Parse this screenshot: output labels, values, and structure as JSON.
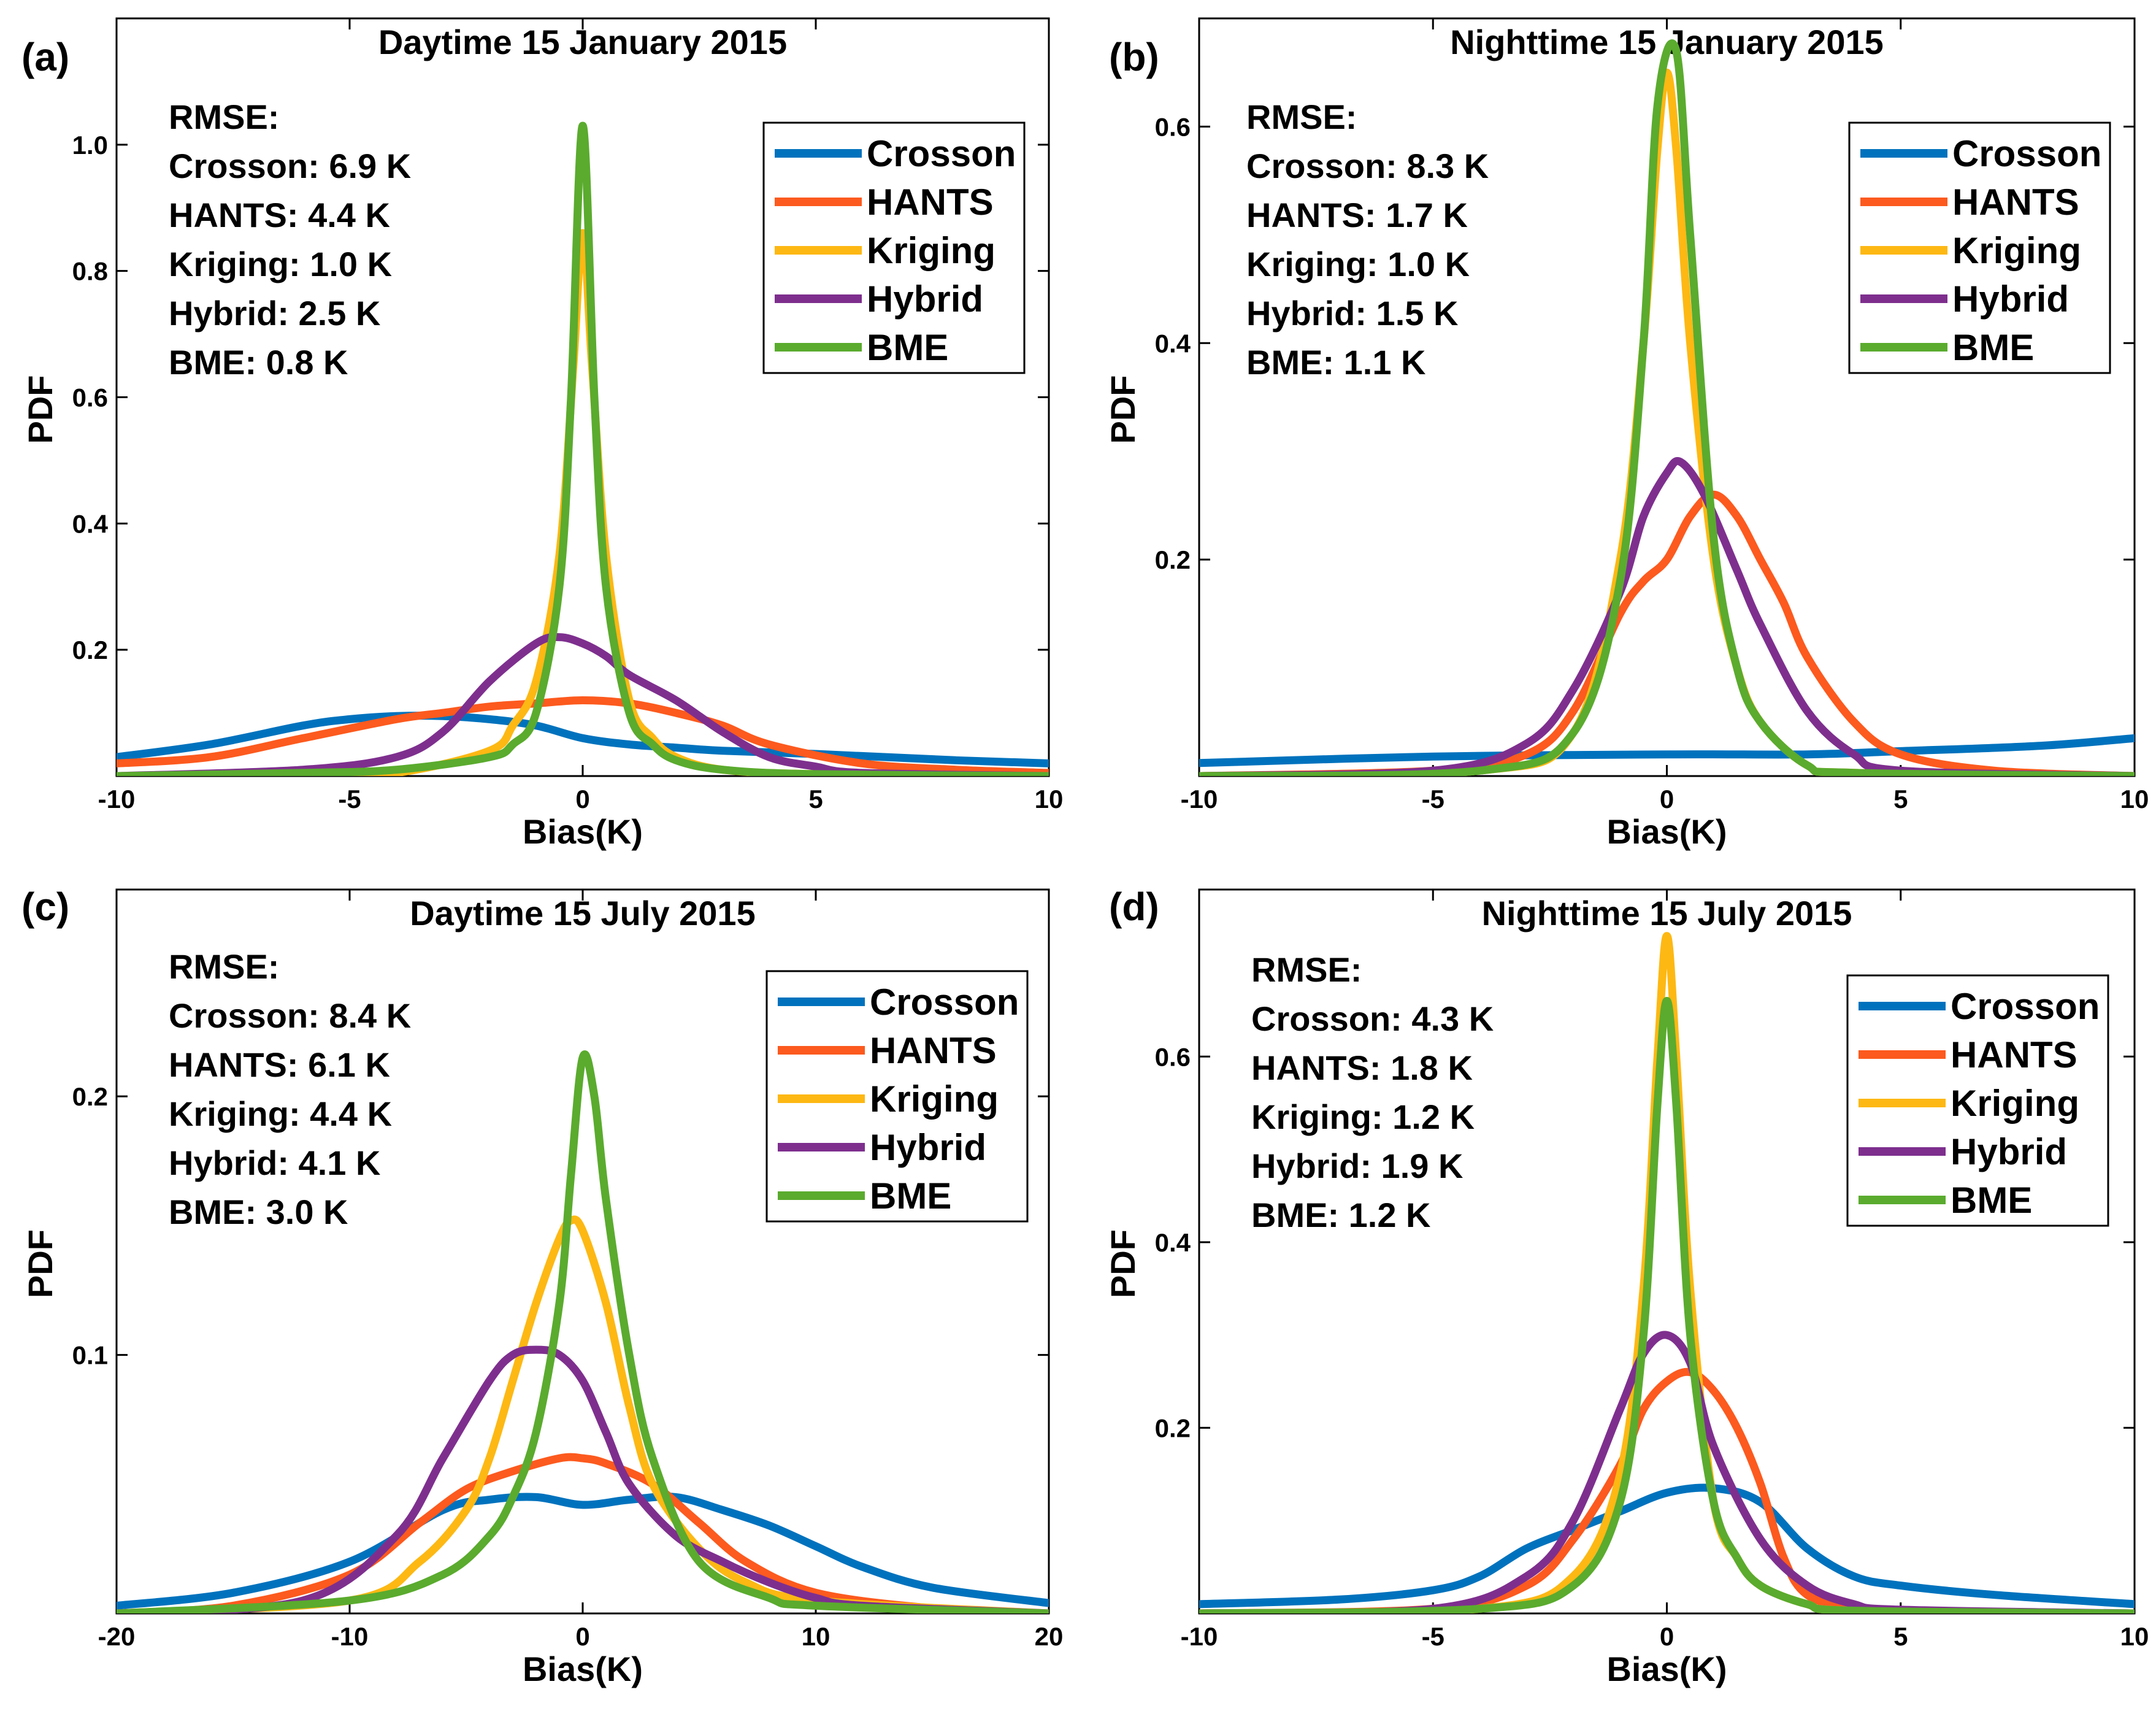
{
  "colors": {
    "Crosson": "#0072bd",
    "HANTS": "#fc5a1e",
    "Kriging": "#fdb813",
    "Hybrid": "#7e2f8e",
    "BME": "#5aab2e"
  },
  "chart_data": [
    {
      "type": "line",
      "panel_label": "(a)",
      "title": "Daytime 15 January 2015",
      "xlabel": "Bias(K)",
      "ylabel": "PDF",
      "xlim": [
        -10,
        10
      ],
      "ylim": [
        0,
        1.2
      ],
      "xticks": [
        -10,
        -5,
        0,
        5,
        10
      ],
      "xtick_labels": [
        "-10",
        "-5",
        "0",
        "5",
        "10"
      ],
      "yticks": [
        0.2,
        0.4,
        0.6,
        0.8,
        1.0
      ],
      "ytick_labels": [
        "0.2",
        "0.4",
        "0.6",
        "0.8",
        "1.0"
      ],
      "grid": false,
      "legend_position": "top-right",
      "rmse": [
        "RMSE:",
        "Crosson: 6.9 K",
        "HANTS: 4.4 K",
        "Kriging: 1.0 K",
        "Hybrid: 2.5 K",
        "BME: 0.8 K"
      ],
      "series": [
        {
          "name": "Crosson",
          "x": [
            -10,
            -8,
            -6,
            -5,
            -4,
            -3,
            -2,
            -1,
            0,
            1,
            2,
            3,
            5,
            8,
            10
          ],
          "y": [
            0.03,
            0.05,
            0.08,
            0.09,
            0.095,
            0.095,
            0.09,
            0.08,
            0.06,
            0.05,
            0.045,
            0.04,
            0.035,
            0.025,
            0.02
          ]
        },
        {
          "name": "HANTS",
          "x": [
            -10,
            -8,
            -6,
            -4,
            -3,
            -2,
            -1,
            0,
            1,
            2,
            3,
            4,
            6,
            8,
            10
          ],
          "y": [
            0.02,
            0.03,
            0.06,
            0.09,
            0.1,
            0.11,
            0.115,
            0.12,
            0.115,
            0.1,
            0.08,
            0.05,
            0.02,
            0.01,
            0.005
          ]
        },
        {
          "name": "Kriging",
          "x": [
            -10,
            -6,
            -4,
            -2,
            -1.5,
            -1,
            -0.5,
            -0.2,
            0,
            0.2,
            0.5,
            1,
            1.5,
            2,
            3,
            5,
            10
          ],
          "y": [
            0.0,
            0.0,
            0.005,
            0.04,
            0.08,
            0.15,
            0.35,
            0.65,
            0.86,
            0.65,
            0.35,
            0.12,
            0.06,
            0.03,
            0.01,
            0.003,
            0.0
          ]
        },
        {
          "name": "Hybrid",
          "x": [
            -10,
            -6,
            -4,
            -3,
            -2,
            -1,
            -0.5,
            0,
            0.5,
            1,
            2,
            3,
            4,
            5,
            6,
            10
          ],
          "y": [
            0.0,
            0.01,
            0.03,
            0.07,
            0.15,
            0.21,
            0.22,
            0.21,
            0.19,
            0.16,
            0.12,
            0.07,
            0.03,
            0.015,
            0.005,
            0.0
          ]
        },
        {
          "name": "BME",
          "x": [
            -10,
            -6,
            -4,
            -2,
            -1.5,
            -1,
            -0.5,
            -0.25,
            0,
            0.25,
            0.5,
            1,
            1.5,
            2,
            3,
            5,
            10
          ],
          "y": [
            0.0,
            0.005,
            0.01,
            0.03,
            0.05,
            0.1,
            0.3,
            0.6,
            1.03,
            0.6,
            0.3,
            0.1,
            0.05,
            0.025,
            0.01,
            0.003,
            0.0
          ]
        }
      ]
    },
    {
      "type": "line",
      "panel_label": "(b)",
      "title": "Nighttime 15 January 2015",
      "xlabel": "Bias(K)",
      "ylabel": "PDF",
      "xlim": [
        -10,
        10
      ],
      "ylim": [
        0,
        0.7
      ],
      "xticks": [
        -10,
        -5,
        0,
        5,
        10
      ],
      "xtick_labels": [
        "-10",
        "-5",
        "0",
        "5",
        "10"
      ],
      "yticks": [
        0.2,
        0.4,
        0.6
      ],
      "ytick_labels": [
        "0.2",
        "0.4",
        "0.6"
      ],
      "grid": false,
      "legend_position": "top-right",
      "rmse": [
        "RMSE:",
        "Crosson: 8.3 K",
        "HANTS: 1.7 K",
        "Kriging: 1.0 K",
        "Hybrid: 1.5 K",
        "BME: 1.1 K"
      ],
      "series": [
        {
          "name": "Crosson",
          "x": [
            -10,
            -5,
            0,
            3,
            5,
            8,
            10
          ],
          "y": [
            0.012,
            0.018,
            0.02,
            0.02,
            0.023,
            0.028,
            0.035
          ]
        },
        {
          "name": "HANTS",
          "x": [
            -10,
            -5,
            -3,
            -2,
            -1,
            -0.5,
            0,
            0.5,
            1,
            1.5,
            2,
            2.5,
            3,
            4,
            5,
            7,
            10
          ],
          "y": [
            0.0,
            0.005,
            0.02,
            0.06,
            0.15,
            0.18,
            0.2,
            0.24,
            0.26,
            0.24,
            0.2,
            0.16,
            0.11,
            0.05,
            0.02,
            0.005,
            0.0
          ]
        },
        {
          "name": "Kriging",
          "x": [
            -10,
            -4,
            -2,
            -1,
            -0.5,
            -0.2,
            0,
            0.2,
            0.5,
            1,
            1.5,
            2,
            3,
            4,
            10
          ],
          "y": [
            0.0,
            0.005,
            0.04,
            0.2,
            0.4,
            0.58,
            0.65,
            0.58,
            0.4,
            0.2,
            0.1,
            0.05,
            0.01,
            0.003,
            0.0
          ]
        },
        {
          "name": "Hybrid",
          "x": [
            -10,
            -5,
            -3,
            -2,
            -1,
            -0.5,
            0,
            0.3,
            0.8,
            1.5,
            2,
            3,
            4,
            5,
            10
          ],
          "y": [
            0.0,
            0.005,
            0.03,
            0.08,
            0.17,
            0.24,
            0.28,
            0.29,
            0.26,
            0.19,
            0.14,
            0.06,
            0.02,
            0.005,
            0.0
          ]
        },
        {
          "name": "BME",
          "x": [
            -10,
            -4,
            -2,
            -1,
            -0.5,
            -0.2,
            0.2,
            0.5,
            1,
            1.5,
            2,
            3,
            4,
            10
          ],
          "y": [
            0.0,
            0.005,
            0.04,
            0.18,
            0.4,
            0.62,
            0.67,
            0.5,
            0.22,
            0.1,
            0.05,
            0.01,
            0.003,
            0.0
          ]
        }
      ]
    },
    {
      "type": "line",
      "panel_label": "(c)",
      "title": "Daytime 15 July 2015",
      "xlabel": "Bias(K)",
      "ylabel": "PDF",
      "xlim": [
        -20,
        20
      ],
      "ylim": [
        0,
        0.28
      ],
      "xticks": [
        -20,
        -10,
        0,
        10,
        20
      ],
      "xtick_labels": [
        "-20",
        "-10",
        "0",
        "10",
        "20"
      ],
      "yticks": [
        0.1,
        0.2
      ],
      "ytick_labels": [
        "0.1",
        "0.2"
      ],
      "grid": false,
      "legend_position": "top-right",
      "rmse": [
        "RMSE:",
        "Crosson: 8.4 K",
        "HANTS: 6.1 K",
        "Kriging: 4.4 K",
        "Hybrid: 4.1 K",
        "BME: 3.0 K"
      ],
      "series": [
        {
          "name": "Crosson",
          "x": [
            -20,
            -15,
            -10,
            -6,
            -4,
            -2,
            0,
            2,
            4,
            6,
            8,
            10,
            12,
            15,
            20
          ],
          "y": [
            0.003,
            0.008,
            0.02,
            0.04,
            0.044,
            0.045,
            0.042,
            0.044,
            0.045,
            0.04,
            0.034,
            0.026,
            0.018,
            0.01,
            0.004
          ]
        },
        {
          "name": "HANTS",
          "x": [
            -20,
            -15,
            -10,
            -7,
            -5,
            -3,
            -1,
            0,
            1,
            3,
            5,
            7,
            10,
            15,
            20
          ],
          "y": [
            0.0,
            0.003,
            0.015,
            0.035,
            0.048,
            0.055,
            0.06,
            0.06,
            0.058,
            0.05,
            0.035,
            0.02,
            0.008,
            0.002,
            0.0
          ]
        },
        {
          "name": "Kriging",
          "x": [
            -20,
            -10,
            -7,
            -5,
            -4,
            -3,
            -2,
            -1,
            -0.5,
            0,
            1,
            2,
            3,
            5,
            7,
            10,
            20
          ],
          "y": [
            0.0,
            0.005,
            0.02,
            0.04,
            0.06,
            0.09,
            0.12,
            0.145,
            0.152,
            0.148,
            0.12,
            0.08,
            0.05,
            0.025,
            0.012,
            0.005,
            0.0
          ]
        },
        {
          "name": "Hybrid",
          "x": [
            -20,
            -12,
            -8,
            -6,
            -4,
            -3,
            -2,
            -1,
            0,
            1,
            2,
            4,
            6,
            8,
            10,
            12,
            20
          ],
          "y": [
            0.0,
            0.005,
            0.03,
            0.06,
            0.09,
            0.1,
            0.102,
            0.1,
            0.09,
            0.07,
            0.05,
            0.03,
            0.02,
            0.012,
            0.006,
            0.003,
            0.0
          ]
        },
        {
          "name": "BME",
          "x": [
            -20,
            -10,
            -6,
            -4,
            -3,
            -2,
            -1,
            -0.5,
            0,
            0.5,
            1,
            2,
            3,
            5,
            8,
            10,
            20
          ],
          "y": [
            0.0,
            0.005,
            0.015,
            0.03,
            0.045,
            0.07,
            0.12,
            0.17,
            0.215,
            0.2,
            0.16,
            0.1,
            0.06,
            0.02,
            0.006,
            0.003,
            0.0
          ]
        }
      ]
    },
    {
      "type": "line",
      "panel_label": "(d)",
      "title": "Nighttime 15 July 2015",
      "xlabel": "Bias(K)",
      "ylabel": "PDF",
      "xlim": [
        -10,
        10
      ],
      "ylim": [
        0,
        0.78
      ],
      "xticks": [
        -10,
        -5,
        0,
        5,
        10
      ],
      "xtick_labels": [
        "-10",
        "-5",
        "0",
        "5",
        "10"
      ],
      "yticks": [
        0.2,
        0.4,
        0.6
      ],
      "ytick_labels": [
        "0.2",
        "0.4",
        "0.6"
      ],
      "grid": false,
      "legend_position": "top-right",
      "rmse": [
        "RMSE:",
        "Crosson: 4.3 K",
        "HANTS: 1.8 K",
        "Kriging: 1.2 K",
        "Hybrid: 1.9 K",
        "BME: 1.2 K"
      ],
      "series": [
        {
          "name": "Crosson",
          "x": [
            -10,
            -7,
            -5,
            -4,
            -3,
            -2,
            -1,
            0,
            1,
            2,
            3,
            4,
            5,
            7,
            10
          ],
          "y": [
            0.01,
            0.015,
            0.025,
            0.04,
            0.07,
            0.09,
            0.11,
            0.13,
            0.135,
            0.12,
            0.07,
            0.04,
            0.03,
            0.02,
            0.01
          ]
        },
        {
          "name": "HANTS",
          "x": [
            -10,
            -5,
            -3,
            -2,
            -1,
            -0.5,
            0,
            0.5,
            1,
            1.5,
            2,
            2.5,
            3,
            4,
            5,
            10
          ],
          "y": [
            0.0,
            0.005,
            0.03,
            0.08,
            0.16,
            0.22,
            0.25,
            0.26,
            0.24,
            0.2,
            0.14,
            0.06,
            0.02,
            0.005,
            0.0,
            0.0
          ]
        },
        {
          "name": "Kriging",
          "x": [
            -10,
            -4,
            -2,
            -1,
            -0.5,
            -0.2,
            0,
            0.2,
            0.5,
            1,
            1.5,
            2,
            3,
            4,
            10
          ],
          "y": [
            0.0,
            0.005,
            0.04,
            0.15,
            0.35,
            0.6,
            0.73,
            0.6,
            0.35,
            0.12,
            0.06,
            0.03,
            0.01,
            0.003,
            0.0
          ]
        },
        {
          "name": "Hybrid",
          "x": [
            -10,
            -5,
            -3,
            -2,
            -1,
            -0.5,
            0,
            0.5,
            1,
            2,
            3,
            4,
            5,
            10
          ],
          "y": [
            0.0,
            0.005,
            0.04,
            0.1,
            0.22,
            0.28,
            0.3,
            0.27,
            0.18,
            0.08,
            0.03,
            0.01,
            0.004,
            0.0
          ]
        },
        {
          "name": "BME",
          "x": [
            -10,
            -4,
            -2,
            -1,
            -0.5,
            -0.2,
            0,
            0.2,
            0.5,
            1,
            1.5,
            2,
            3,
            4,
            10
          ],
          "y": [
            0.0,
            0.005,
            0.03,
            0.12,
            0.3,
            0.55,
            0.66,
            0.55,
            0.3,
            0.12,
            0.06,
            0.03,
            0.01,
            0.003,
            0.0
          ]
        }
      ]
    }
  ]
}
